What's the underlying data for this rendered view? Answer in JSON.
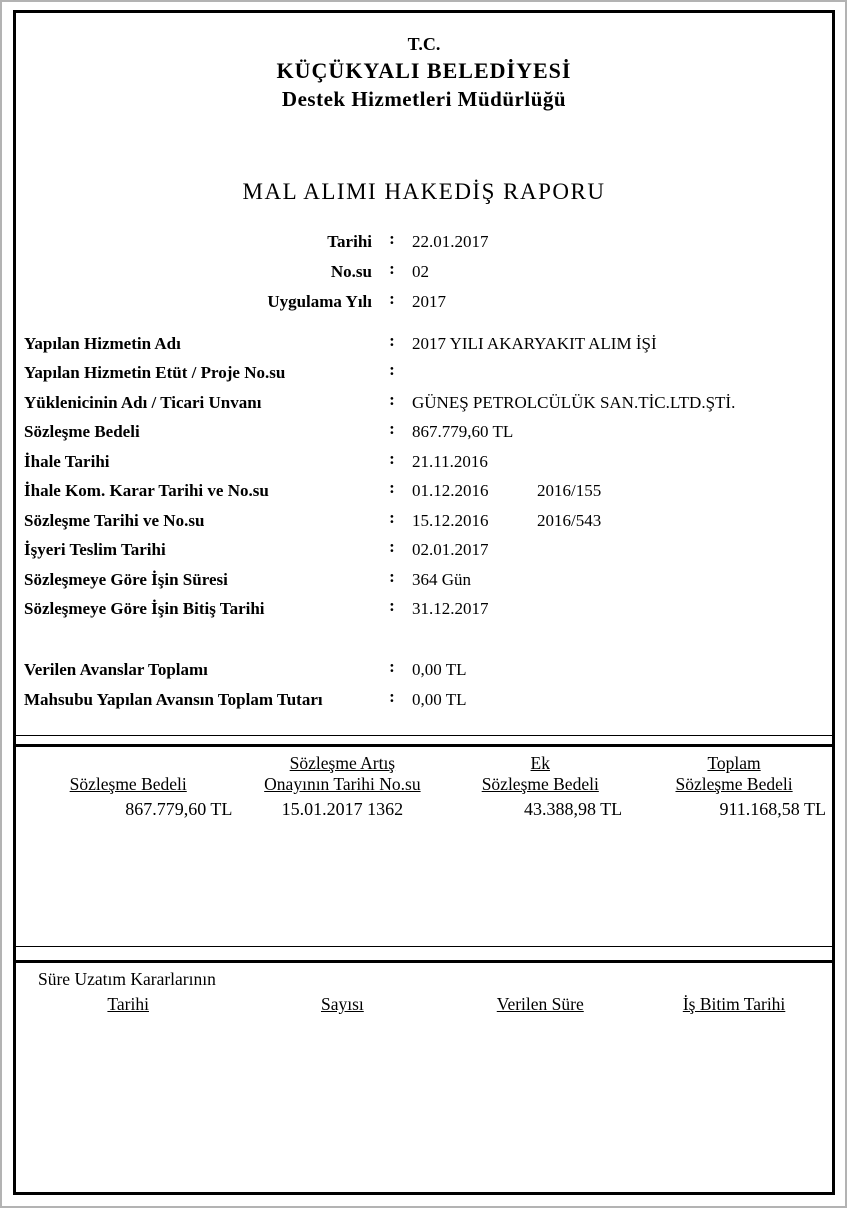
{
  "separator": ":",
  "org": {
    "line1": "T.C.",
    "line2": "KÜÇÜKYALI BELEDİYESİ",
    "line3": "Destek Hizmetleri Müdürlüğü"
  },
  "title": "MAL ALIMI HAKEDİŞ RAPORU",
  "meta": [
    {
      "label": "Tarihi",
      "value": "22.01.2017"
    },
    {
      "label": "No.su",
      "value": "02"
    },
    {
      "label": "Uygulama Yılı",
      "value": "2017"
    }
  ],
  "fields": [
    {
      "label": "Yapılan Hizmetin  Adı",
      "value": "2017 YILI AKARYAKIT ALIM İŞİ",
      "value2": ""
    },
    {
      "label": "Yapılan Hizmetin  Etüt /  Proje  No.su",
      "value": "",
      "value2": ""
    },
    {
      "label": "Yüklenicinin  Adı /  Ticari  Unvanı",
      "value": "GÜNEŞ PETROLCÜLÜK SAN.TİC.LTD.ŞTİ.",
      "value2": ""
    },
    {
      "label": "Sözleşme Bedeli",
      "value": "867.779,60 TL",
      "value2": ""
    },
    {
      "label": "İhale Tarihi",
      "value": "21.11.2016",
      "value2": ""
    },
    {
      "label": "İhale Kom. Karar Tarihi ve No.su",
      "value": "01.12.2016",
      "value2": "2016/155"
    },
    {
      "label": "Sözleşme Tarihi ve No.su",
      "value": "15.12.2016",
      "value2": "2016/543"
    },
    {
      "label": "İşyeri Teslim  Tarihi",
      "value": "02.01.2017",
      "value2": ""
    },
    {
      "label": "Sözleşmeye Göre İşin  Süresi",
      "value": "364 Gün",
      "value2": ""
    },
    {
      "label": "Sözleşmeye Göre İşin  Bitiş  Tarihi",
      "value": "31.12.2017",
      "value2": ""
    }
  ],
  "advances": [
    {
      "label": "Verilen Avanslar Toplamı",
      "value": "0,00 TL"
    },
    {
      "label": "Mahsubu Yapılan Avansın Toplam Tutarı",
      "value": "0,00 TL"
    }
  ],
  "contract_table": {
    "columns": [
      {
        "header_line1": "",
        "header_line2": "Sözleşme Bedeli",
        "value": "867.779,60 TL"
      },
      {
        "header_line1": "Sözleşme Artış",
        "header_line2": "Onayının Tarihi No.su",
        "value": "15.01.2017 1362"
      },
      {
        "header_line1": "Ek",
        "header_line2": "Sözleşme Bedeli",
        "value": "43.388,98 TL"
      },
      {
        "header_line1": "Toplam",
        "header_line2": "Sözleşme Bedeli",
        "value": "911.168,58 TL"
      }
    ]
  },
  "extension_table": {
    "caption": "Süre Uzatım Kararlarının",
    "headers": [
      "Tarihi",
      "Sayısı",
      "Verilen Süre",
      "İş Bitim Tarihi"
    ]
  },
  "colors": {
    "border": "#000000",
    "page_edge": "#b3b3b3",
    "text": "#000000"
  }
}
